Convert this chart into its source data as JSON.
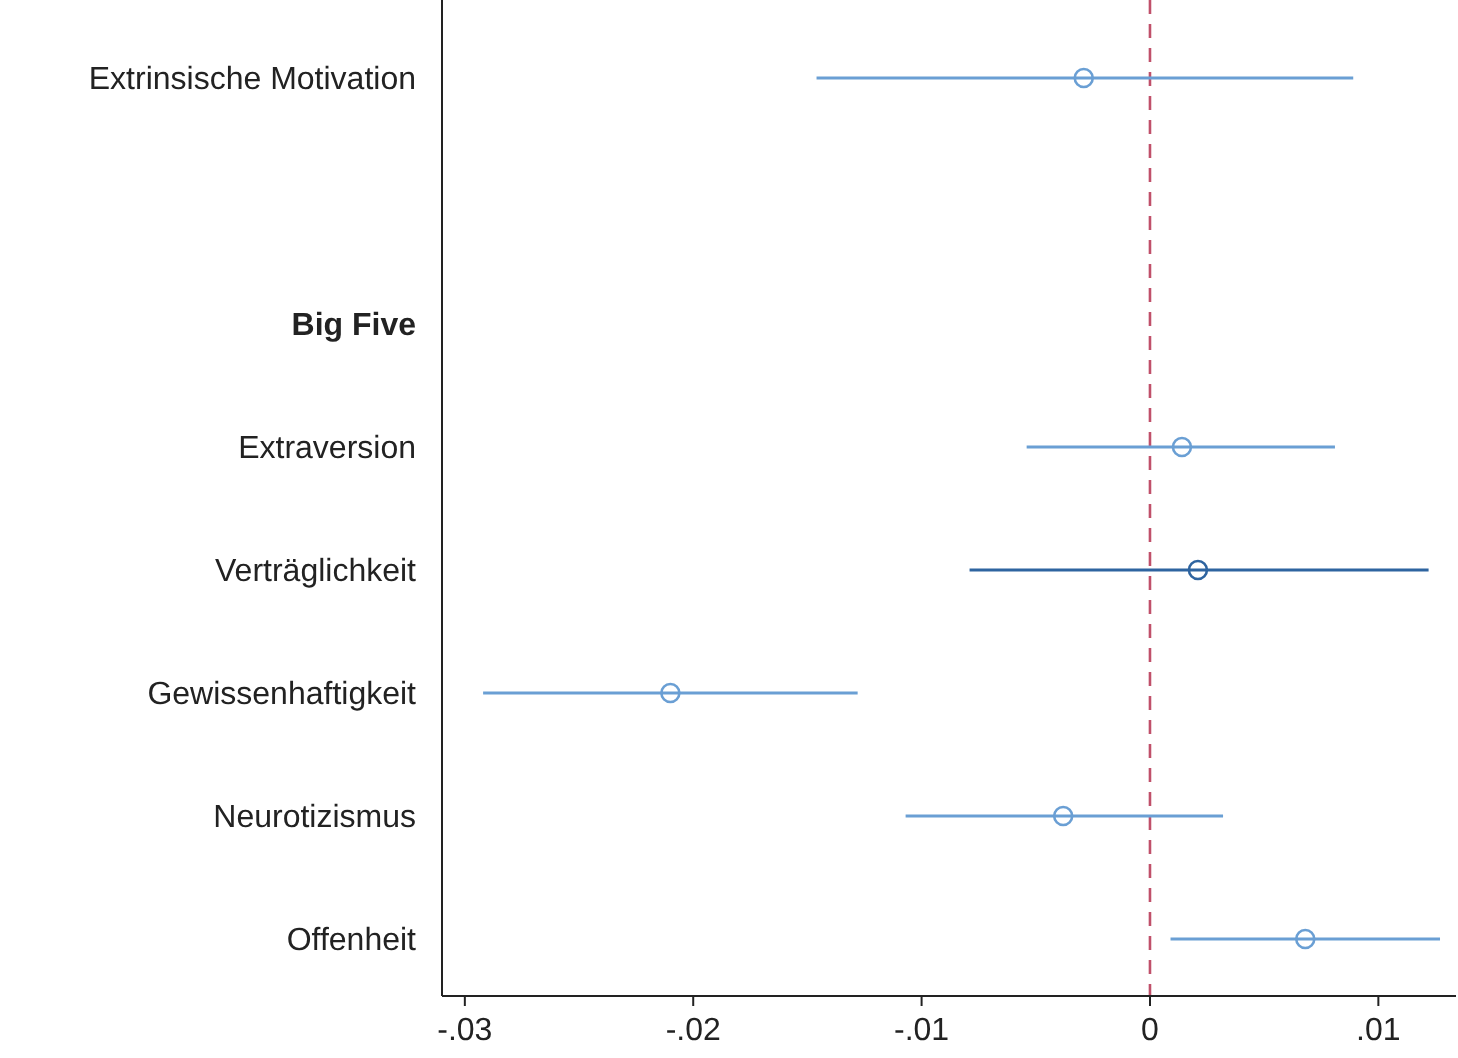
{
  "chart_data": {
    "type": "scatter",
    "orientation": "horizontal",
    "marker": "circle",
    "categories": [
      "Extrinsische Motivation",
      null,
      "Big Five",
      "Extraversion",
      "Verträglichkeit",
      "Gewissenhaftigkeit",
      "Neurotizismus",
      "Offenheit"
    ],
    "values": [
      -0.0029,
      null,
      null,
      0.0014,
      0.0021,
      -0.021,
      -0.0038,
      0.0068
    ],
    "errors": [
      [
        -0.0146,
        0.0089
      ],
      null,
      null,
      [
        -0.0054,
        0.0081
      ],
      [
        -0.0079,
        0.0122
      ],
      [
        -0.0292,
        -0.0128
      ],
      [
        -0.0107,
        0.0032
      ],
      [
        0.0009,
        0.0127
      ]
    ],
    "colors": [
      "#6a9fd4",
      null,
      null,
      "#6a9fd4",
      "#2e64a0",
      "#6a9fd4",
      "#6a9fd4",
      "#6a9fd4"
    ],
    "xlim": [
      -0.031,
      0.0134
    ],
    "xticks": [
      {
        "value": -0.03,
        "label": "-.03"
      },
      {
        "value": -0.02,
        "label": "-.02"
      },
      {
        "value": -0.01,
        "label": "-.01"
      },
      0,
      {
        "value": 0.01,
        "label": ".01"
      }
    ],
    "ref_lines": [
      {
        "axis": "x",
        "value": 0,
        "color": "#c0506a",
        "line_style": "dashed"
      }
    ]
  }
}
